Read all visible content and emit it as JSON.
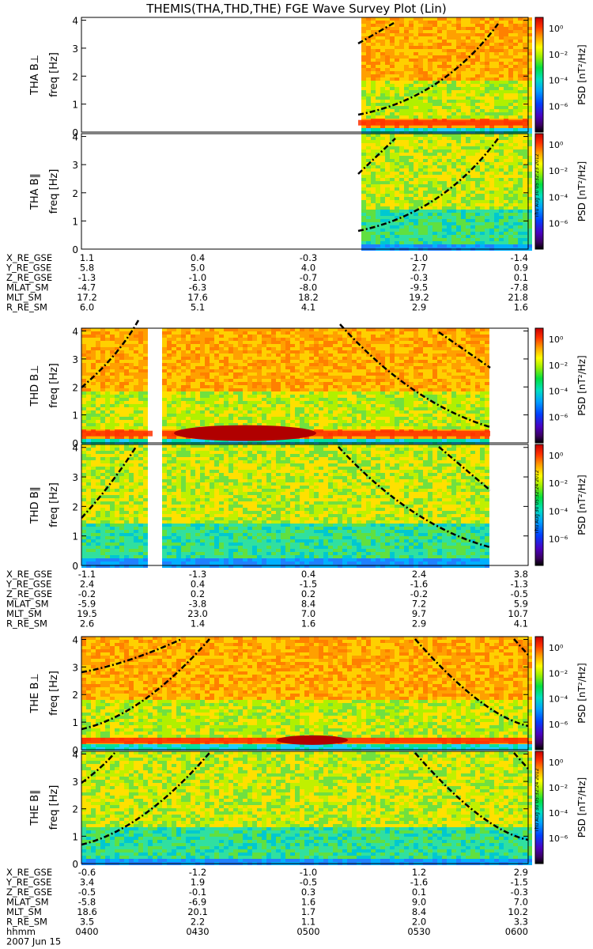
{
  "title": "THEMIS(THA,THD,THE) FGE Wave Survey Plot (Lin)",
  "colorbar": {
    "label": "PSD [nT²/Hz]",
    "ticks": [
      "10⁰",
      "10⁻²",
      "10⁻⁴",
      "10⁻⁶"
    ]
  },
  "freq_ticks": [
    "0",
    "1",
    "2",
    "3",
    "4"
  ],
  "stamps": [
    "Thu Aug 30 05:32:23 2012",
    "Thu Aug 30 05:32:24 2012",
    "Thu Aug 30 05:32:24 2012"
  ],
  "chart_data": [
    {
      "type": "heatmap",
      "probe": "THA",
      "panels": [
        {
          "ylabel": "THA B⊥",
          "unit": "freq [Hz]",
          "ylim": [
            0,
            4.1
          ]
        },
        {
          "ylabel": "THA B∥",
          "unit": "freq [Hz]",
          "ylim": [
            0,
            4.1
          ]
        }
      ],
      "ephemeris": [
        {
          "name": "X_RE_GSE",
          "values": [
            "1.1",
            "0.4",
            "-0.3",
            "-1.0",
            "-1.4"
          ]
        },
        {
          "name": "Y_RE_GSE",
          "values": [
            "5.8",
            "5.0",
            "4.0",
            "2.7",
            "0.9"
          ]
        },
        {
          "name": "Z_RE_GSE",
          "values": [
            "-1.3",
            "-1.0",
            "-0.7",
            "-0.3",
            "0.1"
          ]
        },
        {
          "name": "MLAT_SM",
          "values": [
            "-4.7",
            "-6.3",
            "-8.0",
            "-9.5",
            "-7.8"
          ]
        },
        {
          "name": "MLT_SM",
          "values": [
            "17.2",
            "17.6",
            "18.2",
            "19.2",
            "21.8"
          ]
        },
        {
          "name": "R_RE_SM",
          "values": [
            "6.0",
            "5.1",
            "4.1",
            "2.9",
            "1.6"
          ]
        }
      ]
    },
    {
      "type": "heatmap",
      "probe": "THD",
      "panels": [
        {
          "ylabel": "THD B⊥",
          "unit": "freq [Hz]",
          "ylim": [
            0,
            4.1
          ]
        },
        {
          "ylabel": "THD B∥",
          "unit": "freq [Hz]",
          "ylim": [
            0,
            4.1
          ]
        }
      ],
      "ephemeris": [
        {
          "name": "X_RE_GSE",
          "values": [
            "-1.1",
            "-1.3",
            "0.4",
            "2.4",
            "3.8"
          ]
        },
        {
          "name": "Y_RE_GSE",
          "values": [
            "2.4",
            "0.4",
            "-1.5",
            "-1.6",
            "-1.3"
          ]
        },
        {
          "name": "Z_RE_GSE",
          "values": [
            "-0.2",
            "0.2",
            "0.2",
            "-0.2",
            "-0.5"
          ]
        },
        {
          "name": "MLAT_SM",
          "values": [
            "-5.9",
            "-3.8",
            "8.4",
            "7.2",
            "5.9"
          ]
        },
        {
          "name": "MLT_SM",
          "values": [
            "19.5",
            "23.0",
            "7.0",
            "9.7",
            "10.7"
          ]
        },
        {
          "name": "R_RE_SM",
          "values": [
            "2.6",
            "1.4",
            "1.6",
            "2.9",
            "4.1"
          ]
        }
      ]
    },
    {
      "type": "heatmap",
      "probe": "THE",
      "panels": [
        {
          "ylabel": "THE B⊥",
          "unit": "freq [Hz]",
          "ylim": [
            0,
            4.1
          ]
        },
        {
          "ylabel": "THE B∥",
          "unit": "freq [Hz]",
          "ylim": [
            0,
            4.1
          ]
        }
      ],
      "ephemeris": [
        {
          "name": "X_RE_GSE",
          "values": [
            "-0.6",
            "-1.2",
            "-1.0",
            "1.2",
            "2.9"
          ]
        },
        {
          "name": "Y_RE_GSE",
          "values": [
            "3.4",
            "1.9",
            "-0.5",
            "-1.6",
            "-1.5"
          ]
        },
        {
          "name": "Z_RE_GSE",
          "values": [
            "-0.5",
            "-0.1",
            "0.3",
            "0.1",
            "-0.3"
          ]
        },
        {
          "name": "MLAT_SM",
          "values": [
            "-5.8",
            "-6.9",
            "1.6",
            "9.0",
            "7.0"
          ]
        },
        {
          "name": "MLT_SM",
          "values": [
            "18.6",
            "20.1",
            "1.7",
            "8.4",
            "10.2"
          ]
        },
        {
          "name": "R_RE_SM",
          "values": [
            "3.5",
            "2.2",
            "1.1",
            "2.0",
            "3.3"
          ]
        },
        {
          "name": "hhmm",
          "values": [
            "0400",
            "0430",
            "0500",
            "0530",
            "0600"
          ]
        }
      ],
      "date": "2007 Jun 15"
    }
  ]
}
